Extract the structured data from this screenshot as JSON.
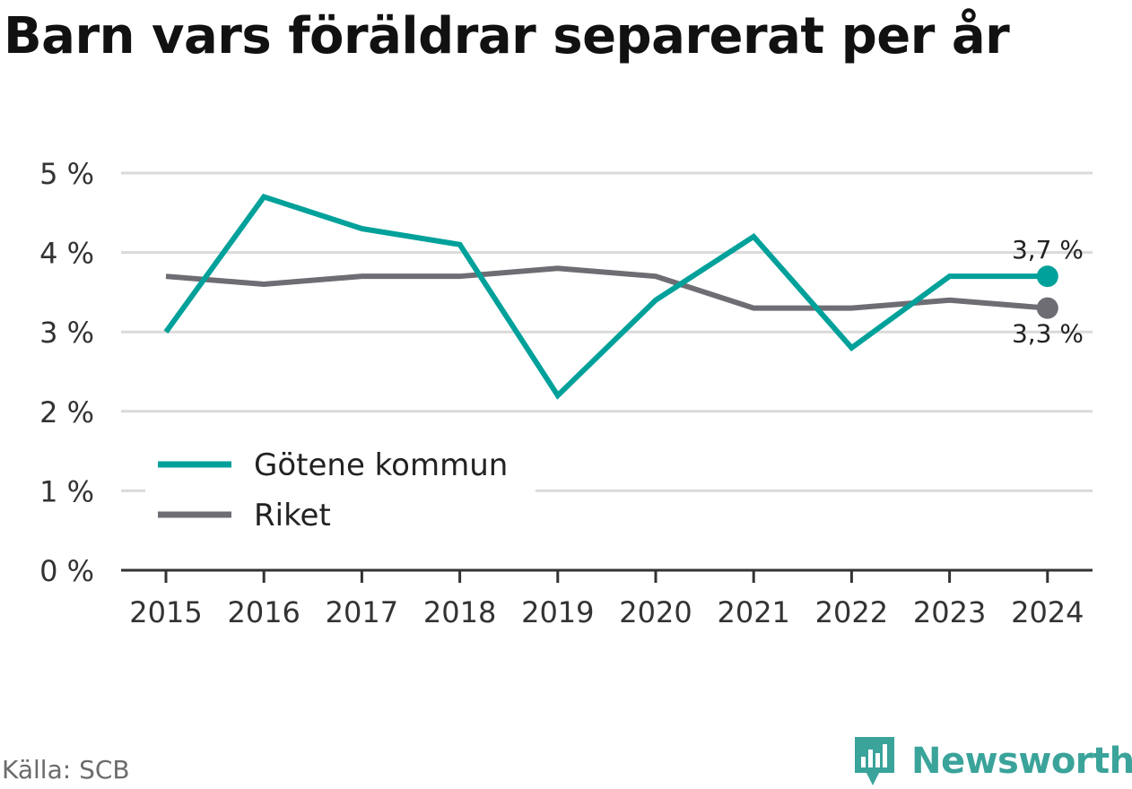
{
  "title": "Barn vars föräldrar separerat per år",
  "source": "Källa: SCB",
  "brand": "Newsworthy",
  "colors": {
    "gotene": "#00a19a",
    "riket": "#6e6d73",
    "grid": "#dadada",
    "axis": "#333333",
    "brand": "#3aa39a"
  },
  "chart_data": {
    "type": "line",
    "x": [
      "2015",
      "2016",
      "2017",
      "2018",
      "2019",
      "2020",
      "2021",
      "2022",
      "2023",
      "2024"
    ],
    "series": [
      {
        "name": "Götene kommun",
        "values": [
          3.0,
          4.7,
          4.3,
          4.1,
          2.2,
          3.4,
          4.2,
          2.8,
          3.7,
          3.7
        ],
        "end_label": "3,7 %"
      },
      {
        "name": "Riket",
        "values": [
          3.7,
          3.6,
          3.7,
          3.7,
          3.8,
          3.7,
          3.3,
          3.3,
          3.4,
          3.3
        ],
        "end_label": "3,3 %"
      }
    ],
    "y_ticks": [
      "0 %",
      "1 %",
      "2 %",
      "3 %",
      "4 %",
      "5 %"
    ],
    "ylim": [
      0,
      5
    ],
    "grid": true,
    "legend_position": "bottom-left"
  }
}
